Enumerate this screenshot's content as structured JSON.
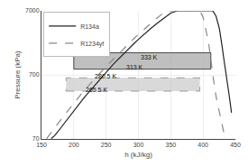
{
  "chart_data": {
    "type": "line",
    "xlabel": "h (kJ/kg)",
    "ylabel": "Pressure (kPa)",
    "xlim": [
      150,
      450
    ],
    "ylim": [
      70,
      7000
    ],
    "xticks": [
      150,
      200,
      250,
      300,
      350,
      400,
      450
    ],
    "yticks": [
      70,
      700,
      7000
    ],
    "log": "y",
    "grid": true,
    "legend": "upper left",
    "series": [
      {
        "name": "R134a",
        "color": "#222222",
        "line_style": "solid",
        "x": [
          165,
          170,
          175,
          180,
          185,
          190,
          195,
          200,
          205,
          210,
          215,
          220,
          225,
          230,
          235,
          240,
          245,
          250,
          255,
          260,
          265,
          270,
          275,
          280,
          285,
          290,
          295,
          300,
          310,
          320,
          330,
          340,
          350,
          360,
          370,
          375,
          380,
          380,
          415,
          420,
          423,
          425,
          426,
          427,
          428,
          429,
          430,
          431,
          432,
          434,
          436,
          438,
          440,
          442,
          444
        ],
        "values": [
          71,
          78,
          90,
          105,
          122,
          142,
          165,
          193,
          225,
          260,
          300,
          345,
          395,
          455,
          520,
          595,
          680,
          773,
          878,
          994,
          1124,
          1268,
          1428,
          1605,
          1800,
          2015,
          2250,
          2510,
          3100,
          3780,
          4560,
          5450,
          6450,
          7000,
          7000,
          7000,
          7000,
          7000,
          7000,
          5800,
          4600,
          3800,
          3300,
          2900,
          2500,
          2100,
          1800,
          1500,
          1250,
          900,
          660,
          490,
          360,
          260,
          180
        ],
        "cycle": {
          "x": [
            200,
            412
          ],
          "y": [
            860,
            1550
          ],
          "color": "#aaaaaa"
        }
      },
      {
        "name": "R1234yf",
        "color": "#888888",
        "line_style": "dashed",
        "x": [
          158,
          163,
          168,
          173,
          178,
          183,
          188,
          193,
          198,
          203,
          208,
          213,
          218,
          223,
          228,
          233,
          238,
          243,
          248,
          253,
          258,
          263,
          268,
          273,
          278,
          283,
          288,
          293,
          298,
          308,
          318,
          328,
          338,
          345,
          350,
          350,
          395,
          400,
          403,
          405,
          407,
          408,
          409,
          410,
          411,
          412,
          413,
          415,
          418,
          421,
          425,
          429,
          433
        ],
        "values": [
          71,
          82,
          96,
          112,
          131,
          153,
          178,
          207,
          240,
          278,
          320,
          367,
          420,
          480,
          547,
          622,
          705,
          798,
          902,
          1018,
          1148,
          1293,
          1455,
          1635,
          1835,
          2058,
          2305,
          2580,
          2880,
          3570,
          4380,
          5320,
          6400,
          7000,
          7000,
          7000,
          7000,
          5600,
          4200,
          3400,
          2800,
          2400,
          2050,
          1700,
          1400,
          1150,
          940,
          660,
          430,
          290,
          190,
          120,
          80
        ],
        "cycle": {
          "x": [
            188,
            395
          ],
          "y": [
            390,
            630
          ],
          "color": "#cccccc"
        }
      }
    ],
    "annotations": [
      {
        "text": "333 K",
        "x": 300,
        "y": 1300
      },
      {
        "text": "313 K",
        "x": 278,
        "y": 910
      },
      {
        "text": "280.5 K",
        "x": 230,
        "y": 660
      },
      {
        "text": "265.5 K",
        "x": 215,
        "y": 405
      }
    ]
  }
}
